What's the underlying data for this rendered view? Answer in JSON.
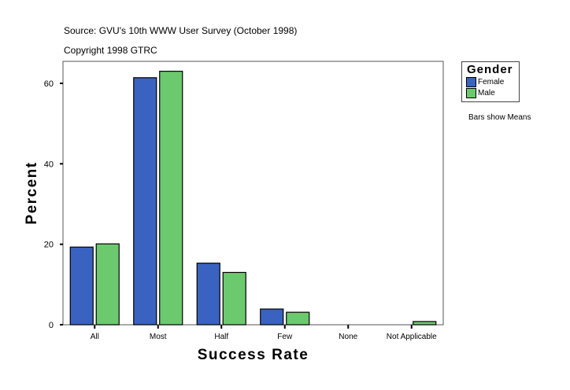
{
  "header": {
    "source": "Source: GVU's 10th WWW User Survey (October 1998)",
    "copyright": "Copyright 1998 GTRC"
  },
  "legend": {
    "title": "Gender",
    "note": "Bars show Means"
  },
  "chart_data": {
    "type": "bar",
    "xlabel": "Success Rate",
    "ylabel": "Percent",
    "categories": [
      "All",
      "Most",
      "Half",
      "Few",
      "None",
      "Not Applicable"
    ],
    "series": [
      {
        "name": "Female",
        "color": "#3a62c0",
        "values": [
          19.3,
          61.4,
          15.3,
          3.9,
          0,
          0
        ]
      },
      {
        "name": "Male",
        "color": "#6cc96e",
        "values": [
          20.1,
          63.0,
          13.0,
          3.1,
          0,
          0.8
        ]
      }
    ],
    "yticks": [
      0,
      20,
      40,
      60
    ],
    "ylim": [
      0,
      65.5
    ],
    "grid": false,
    "legend_position": "right"
  }
}
